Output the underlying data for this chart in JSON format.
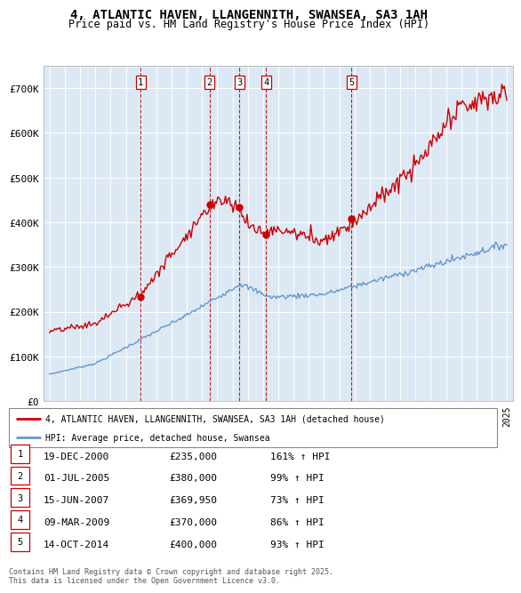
{
  "title": "4, ATLANTIC HAVEN, LLANGENNITH, SWANSEA, SA3 1AH",
  "subtitle": "Price paid vs. HM Land Registry's House Price Index (HPI)",
  "footer": "Contains HM Land Registry data © Crown copyright and database right 2025.\nThis data is licensed under the Open Government Licence v3.0.",
  "legend_red": "4, ATLANTIC HAVEN, LLANGENNITH, SWANSEA, SA3 1AH (detached house)",
  "legend_blue": "HPI: Average price, detached house, Swansea",
  "transactions": [
    {
      "num": 1,
      "date": "19-DEC-2000",
      "date_val": 2000.97,
      "price": 235000,
      "hpi_pct": "161% ↑ HPI"
    },
    {
      "num": 2,
      "date": "01-JUL-2005",
      "date_val": 2005.5,
      "price": 380000,
      "hpi_pct": "99% ↑ HPI"
    },
    {
      "num": 3,
      "date": "15-JUN-2007",
      "date_val": 2007.46,
      "price": 369950,
      "hpi_pct": "73% ↑ HPI"
    },
    {
      "num": 4,
      "date": "09-MAR-2009",
      "date_val": 2009.19,
      "price": 370000,
      "hpi_pct": "86% ↑ HPI"
    },
    {
      "num": 5,
      "date": "14-OCT-2014",
      "date_val": 2014.79,
      "price": 400000,
      "hpi_pct": "93% ↑ HPI"
    }
  ],
  "ylim": [
    0,
    750000
  ],
  "yticks": [
    0,
    100000,
    200000,
    300000,
    400000,
    500000,
    600000,
    700000
  ],
  "ytick_labels": [
    "£0",
    "£100K",
    "£200K",
    "£300K",
    "£400K",
    "£500K",
    "£600K",
    "£700K"
  ],
  "xlim_start": 1994.6,
  "xlim_end": 2025.4,
  "background_color": "#dce9f5",
  "red_color": "#cc0000",
  "blue_color": "#6699cc",
  "grid_color": "#ffffff",
  "vline_color": "#cc0000"
}
